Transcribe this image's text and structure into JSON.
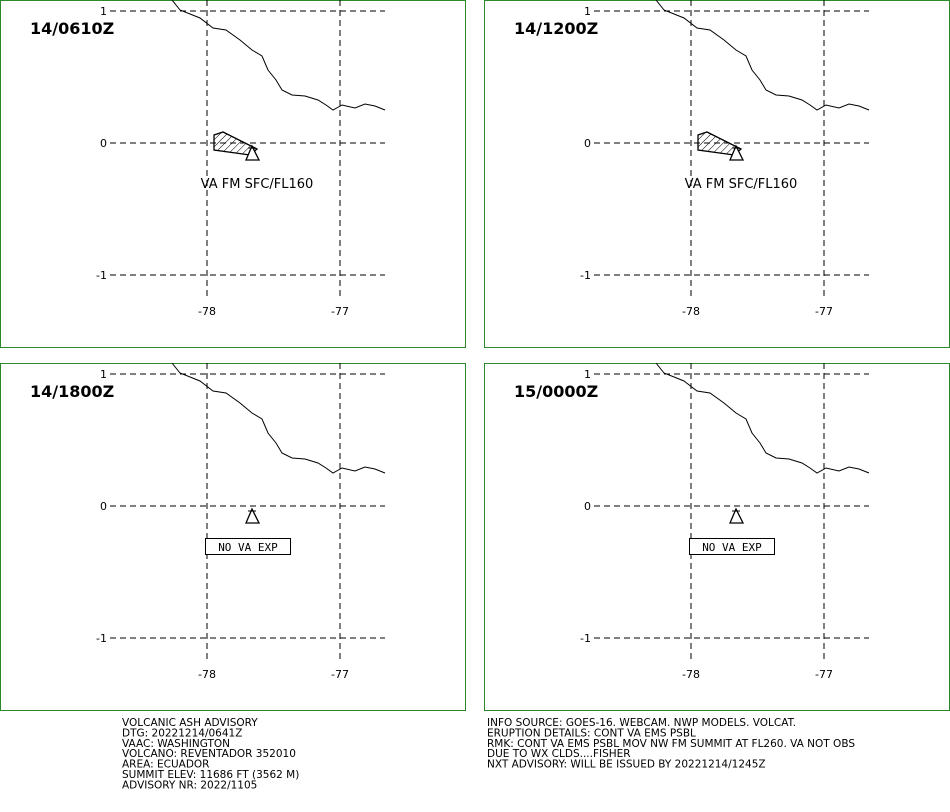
{
  "map": {
    "lat_ticks": [
      1,
      0,
      -1
    ],
    "lon_ticks": [
      -78,
      -77
    ],
    "panels": [
      {
        "time": "14/0610Z",
        "label": "VA FM SFC/FL160",
        "ash": true
      },
      {
        "time": "14/1200Z",
        "label": "VA FM SFC/FL160",
        "ash": true
      },
      {
        "time": "14/1800Z",
        "label": "NO VA EXP",
        "ash": false
      },
      {
        "time": "15/0000Z",
        "label": "NO VA EXP",
        "ash": false
      }
    ]
  },
  "advisory": {
    "left": [
      "VOLCANIC ASH ADVISORY",
      "DTG: 20221214/0641Z",
      "VAAC: WASHINGTON",
      "VOLCANO: REVENTADOR 352010",
      "AREA: ECUADOR",
      "SUMMIT ELEV: 11686 FT (3562 M)",
      "ADVISORY NR: 2022/1105"
    ],
    "right": [
      "INFO SOURCE: GOES-16. WEBCAM. NWP MODELS. VOLCAT.",
      "ERUPTION DETAILS: CONT VA EMS PSBL",
      "RMK: CONT VA EMS PSBL MOV NW FM SUMMIT AT FL260. VA NOT OBS",
      "DUE TO WX CLDS....FISHER",
      "NXT ADVISORY: WILL BE ISSUED BY 20221214/1245Z"
    ]
  }
}
